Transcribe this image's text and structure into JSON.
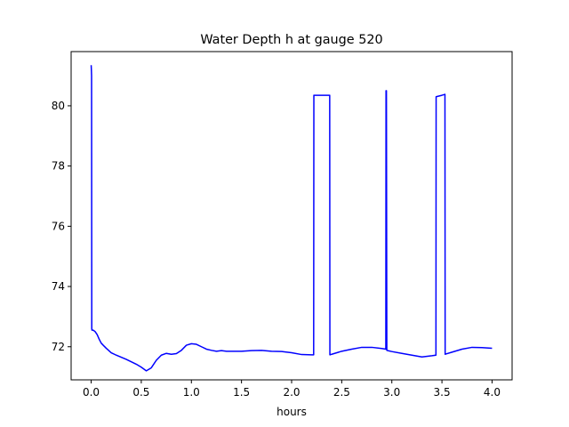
{
  "chart_data": {
    "type": "line",
    "title": "Water Depth h at gauge 520",
    "xlabel": "hours",
    "ylabel": "",
    "xlim": [
      -0.2,
      4.2
    ],
    "ylim": [
      70.9,
      81.8
    ],
    "xticks": [
      0.0,
      0.5,
      1.0,
      1.5,
      2.0,
      2.5,
      3.0,
      3.5,
      4.0
    ],
    "xtick_labels": [
      "0.0",
      "0.5",
      "1.0",
      "1.5",
      "2.0",
      "2.5",
      "3.0",
      "3.5",
      "4.0"
    ],
    "yticks": [
      72,
      74,
      76,
      78,
      80
    ],
    "ytick_labels": [
      "72",
      "74",
      "76",
      "78",
      "80"
    ],
    "grid": false,
    "series": [
      {
        "color": "#0000ff",
        "x": [
          0.0,
          0.002,
          0.004,
          0.006,
          0.008,
          0.01,
          0.02,
          0.04,
          0.06,
          0.08,
          0.1,
          0.12,
          0.15,
          0.2,
          0.25,
          0.3,
          0.35,
          0.4,
          0.45,
          0.5,
          0.55,
          0.6,
          0.65,
          0.7,
          0.75,
          0.8,
          0.85,
          0.9,
          0.95,
          1.0,
          1.05,
          1.1,
          1.15,
          1.2,
          1.25,
          1.3,
          1.35,
          1.4,
          1.5,
          1.6,
          1.7,
          1.8,
          1.9,
          2.0,
          2.1,
          2.2,
          2.22,
          2.222,
          2.3,
          2.38,
          2.382,
          2.4,
          2.5,
          2.6,
          2.7,
          2.8,
          2.9,
          2.94,
          2.942,
          2.946,
          2.95,
          2.952,
          2.96,
          3.0,
          3.1,
          3.2,
          3.3,
          3.4,
          3.44,
          3.442,
          3.5,
          3.53,
          3.532,
          3.6,
          3.7,
          3.8,
          3.9,
          4.0
        ],
        "y": [
          81.35,
          81.2,
          81.0,
          72.6,
          72.55,
          72.55,
          72.55,
          72.5,
          72.4,
          72.25,
          72.12,
          72.05,
          71.95,
          71.8,
          71.72,
          71.65,
          71.58,
          71.5,
          71.42,
          71.32,
          71.2,
          71.3,
          71.55,
          71.72,
          71.78,
          71.75,
          71.77,
          71.88,
          72.05,
          72.1,
          72.08,
          72.0,
          71.92,
          71.88,
          71.85,
          71.87,
          71.85,
          71.85,
          71.85,
          71.87,
          71.88,
          71.85,
          71.84,
          71.8,
          71.74,
          71.73,
          71.73,
          80.35,
          80.35,
          80.35,
          71.73,
          71.75,
          71.85,
          71.92,
          71.98,
          71.98,
          71.94,
          71.92,
          80.5,
          80.5,
          71.88,
          71.88,
          71.87,
          71.84,
          71.78,
          71.72,
          71.66,
          71.7,
          71.72,
          80.3,
          80.35,
          80.38,
          71.75,
          71.82,
          71.92,
          71.98,
          71.97,
          71.95
        ]
      }
    ]
  }
}
